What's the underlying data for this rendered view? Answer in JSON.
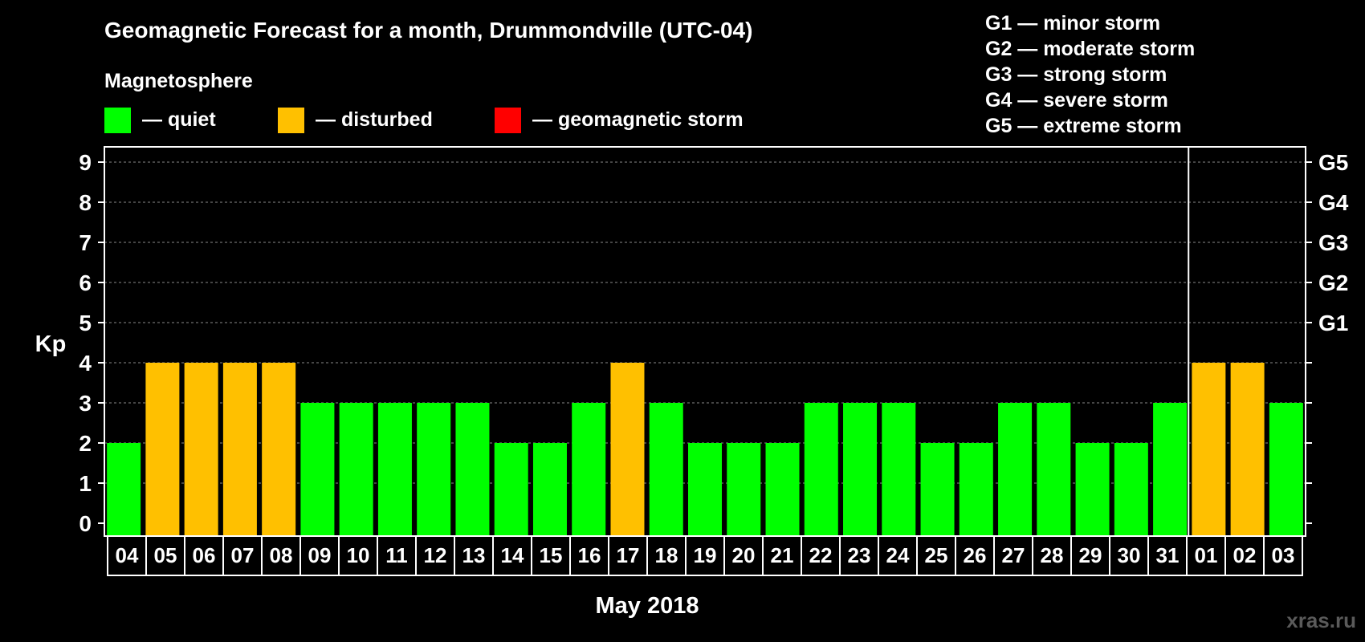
{
  "title": "Geomagnetic Forecast for a month, Drummondville (UTC-04)",
  "legend": {
    "heading": "Magnetosphere",
    "items": [
      {
        "label": "— quiet",
        "color": "#00ff00"
      },
      {
        "label": "— disturbed",
        "color": "#ffc000"
      },
      {
        "label": "— geomagnetic storm",
        "color": "#ff0000"
      }
    ]
  },
  "storm_scale": [
    "G1 — minor storm",
    "G2 — moderate storm",
    "G3 — strong storm",
    "G4 — severe storm",
    "G5 — extreme storm"
  ],
  "watermark": "xras.ru",
  "chart_data": {
    "type": "bar",
    "categories": [
      "04",
      "05",
      "06",
      "07",
      "08",
      "09",
      "10",
      "11",
      "12",
      "13",
      "14",
      "15",
      "16",
      "17",
      "18",
      "19",
      "20",
      "21",
      "22",
      "23",
      "24",
      "25",
      "26",
      "27",
      "28",
      "29",
      "30",
      "31",
      "01",
      "02",
      "03"
    ],
    "values": [
      2,
      4,
      4,
      4,
      4,
      3,
      3,
      3,
      3,
      3,
      2,
      2,
      3,
      4,
      3,
      2,
      2,
      2,
      3,
      3,
      3,
      2,
      2,
      3,
      3,
      2,
      2,
      3,
      4,
      4,
      3
    ],
    "status": [
      "quiet",
      "disturbed",
      "disturbed",
      "disturbed",
      "disturbed",
      "quiet",
      "quiet",
      "quiet",
      "quiet",
      "quiet",
      "quiet",
      "quiet",
      "quiet",
      "disturbed",
      "quiet",
      "quiet",
      "quiet",
      "quiet",
      "quiet",
      "quiet",
      "quiet",
      "quiet",
      "quiet",
      "quiet",
      "quiet",
      "quiet",
      "quiet",
      "quiet",
      "disturbed",
      "disturbed",
      "quiet"
    ],
    "colors": {
      "quiet": "#00ff00",
      "disturbed": "#ffc000",
      "storm": "#ff0000"
    },
    "xlabel": "May 2018",
    "ylabel": "Kp",
    "ylim": [
      0,
      9
    ],
    "yticks": [
      0,
      1,
      2,
      3,
      4,
      5,
      6,
      7,
      8,
      9
    ],
    "right_ticks": [
      {
        "kp": 5,
        "label": "G1"
      },
      {
        "kp": 6,
        "label": "G2"
      },
      {
        "kp": 7,
        "label": "G3"
      },
      {
        "kp": 8,
        "label": "G4"
      },
      {
        "kp": 9,
        "label": "G5"
      }
    ],
    "month_divider_before": "01",
    "grid": true
  }
}
